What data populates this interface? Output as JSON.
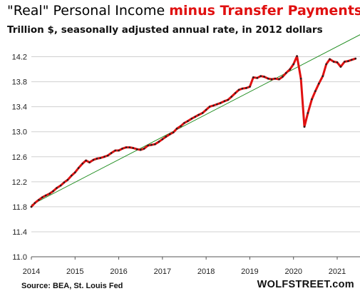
{
  "title": {
    "part1": "\"Real\" Personal Income ",
    "part2": "minus Transfer Payments",
    "part1_color": "#000000",
    "part2_color": "#e01010"
  },
  "subtitle": "Trillion $, seasonally adjusted annual rate, in 2012 dollars",
  "source": "Source: BEA, St. Louis Fed",
  "brand": "WOLFSTREET.com",
  "chart_data": {
    "type": "line",
    "title": "",
    "xlabel": "",
    "ylabel": "",
    "ylim": [
      11.0,
      14.4
    ],
    "xlim": [
      2014,
      2021.6
    ],
    "yticks": [
      "11.0",
      "11.4",
      "11.8",
      "12.2",
      "12.6",
      "13.0",
      "13.4",
      "13.8",
      "14.2"
    ],
    "xticks": [
      "2014",
      "2015",
      "2016",
      "2017",
      "2018",
      "2019",
      "2020",
      "2021"
    ],
    "grid": "horizontal",
    "legend": "none",
    "series": [
      {
        "color": "#e01010",
        "marker_color": "#222222",
        "x": [
          2014.0,
          2014.08,
          2014.17,
          2014.25,
          2014.33,
          2014.42,
          2014.5,
          2014.58,
          2014.67,
          2014.75,
          2014.83,
          2014.92,
          2015.0,
          2015.08,
          2015.17,
          2015.25,
          2015.33,
          2015.42,
          2015.5,
          2015.58,
          2015.67,
          2015.75,
          2015.83,
          2015.92,
          2016.0,
          2016.08,
          2016.17,
          2016.25,
          2016.33,
          2016.42,
          2016.5,
          2016.58,
          2016.67,
          2016.75,
          2016.83,
          2016.92,
          2017.0,
          2017.08,
          2017.17,
          2017.25,
          2017.33,
          2017.42,
          2017.5,
          2017.58,
          2017.67,
          2017.75,
          2017.83,
          2017.92,
          2018.0,
          2018.08,
          2018.17,
          2018.25,
          2018.33,
          2018.42,
          2018.5,
          2018.58,
          2018.67,
          2018.75,
          2018.83,
          2018.92,
          2019.0,
          2019.08,
          2019.17,
          2019.25,
          2019.33,
          2019.42,
          2019.5,
          2019.58,
          2019.67,
          2019.75,
          2019.83,
          2019.92,
          2020.0,
          2020.08,
          2020.17,
          2020.25,
          2020.33,
          2020.42,
          2020.5,
          2020.58,
          2020.67,
          2020.75,
          2020.83,
          2020.92,
          2021.0,
          2021.08,
          2021.17,
          2021.25,
          2021.33,
          2021.42
        ],
        "y": [
          11.8,
          11.86,
          11.91,
          11.95,
          11.98,
          12.01,
          12.05,
          12.1,
          12.14,
          12.19,
          12.23,
          12.3,
          12.35,
          12.42,
          12.49,
          12.54,
          12.51,
          12.55,
          12.57,
          12.58,
          12.6,
          12.62,
          12.66,
          12.7,
          12.7,
          12.73,
          12.75,
          12.75,
          12.74,
          12.72,
          12.71,
          12.73,
          12.78,
          12.79,
          12.8,
          12.84,
          12.88,
          12.92,
          12.96,
          12.99,
          13.05,
          13.09,
          13.14,
          13.17,
          13.21,
          13.24,
          13.27,
          13.3,
          13.35,
          13.4,
          13.42,
          13.44,
          13.46,
          13.49,
          13.51,
          13.56,
          13.62,
          13.67,
          13.69,
          13.7,
          13.72,
          13.87,
          13.86,
          13.89,
          13.88,
          13.85,
          13.84,
          13.85,
          13.84,
          13.88,
          13.94,
          14.0,
          14.08,
          14.21,
          13.85,
          13.08,
          13.3,
          13.52,
          13.65,
          13.77,
          13.89,
          14.08,
          14.16,
          14.12,
          14.11,
          14.04,
          14.12,
          14.13,
          14.15,
          14.17
        ]
      }
    ],
    "trendline": {
      "color": "#1a8a1a",
      "x": [
        2014.0,
        2021.6
      ],
      "y": [
        11.83,
        14.58
      ]
    }
  }
}
